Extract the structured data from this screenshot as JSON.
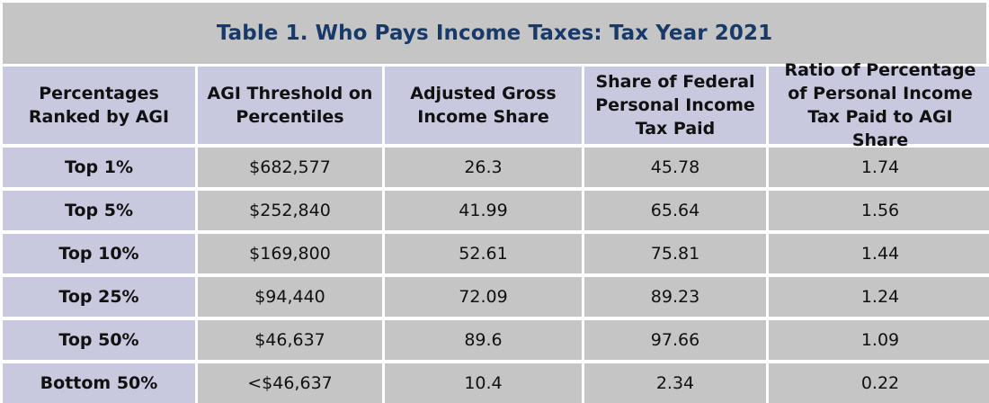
{
  "title": "Table 1. Who Pays Income Taxes: Tax Year 2021",
  "headers": [
    "Percentages Ranked by AGI",
    "AGI Threshold on Percentiles",
    "Adjusted Gross Income Share",
    "Share of Federal Personal Income Tax Paid",
    "Ratio of Percentage of Personal Income Tax Paid to AGI Share"
  ],
  "rows": [
    [
      "Top 1%",
      "$682,577",
      "26.3",
      "45.78",
      "1.74"
    ],
    [
      "Top 5%",
      "$252,840",
      "41.99",
      "65.64",
      "1.56"
    ],
    [
      "Top 10%",
      "$169,800",
      "52.61",
      "75.81",
      "1.44"
    ],
    [
      "Top 25%",
      "$94,440",
      "72.09",
      "89.23",
      "1.24"
    ],
    [
      "Top 50%",
      "$46,637",
      "89.6",
      "97.66",
      "1.09"
    ],
    [
      "Bottom 50%",
      "<$46,637",
      "10.4",
      "2.34",
      "0.22"
    ]
  ],
  "colors": {
    "title_text": "#183a6b",
    "title_bg": "#c5c5c5",
    "header_bg": "#c8c8df",
    "label_bg": "#c8c8df",
    "value_bg": "#c5c5c5"
  }
}
